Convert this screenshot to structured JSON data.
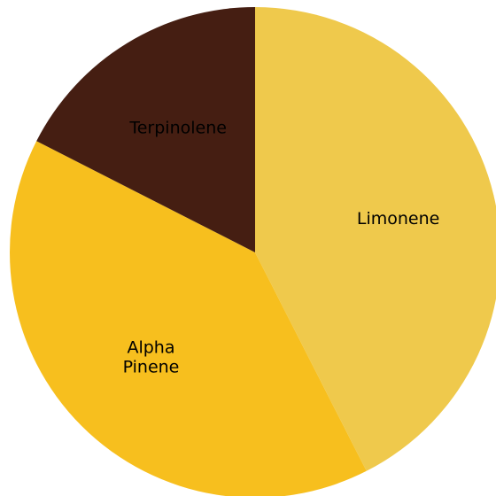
{
  "chart_data": {
    "type": "pie",
    "title": "",
    "slices": [
      {
        "label": "Limonene",
        "label_lines": [
          "Limonene"
        ],
        "value": 42.5,
        "color": "#EFC94C"
      },
      {
        "label": "Alpha Pinene",
        "label_lines": [
          "Alpha",
          "Pinene"
        ],
        "value": 40.0,
        "color": "#F7BF1E"
      },
      {
        "label": "Terpinolene",
        "label_lines": [
          "Terpinolene"
        ],
        "value": 17.5,
        "color": "#451E12"
      }
    ],
    "start_angle": "12 o'clock",
    "direction": "clockwise",
    "legend": "none"
  }
}
